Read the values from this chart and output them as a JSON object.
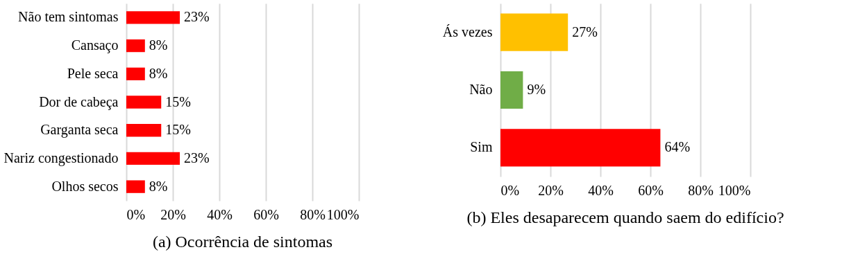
{
  "chart_data": [
    {
      "type": "bar",
      "orientation": "horizontal",
      "title": "(a) Ocorrência de sintomas",
      "categories": [
        "Não tem sintomas",
        "Cansaço",
        "Pele seca",
        "Dor de cabeça",
        "Garganta seca",
        "Nariz congestionado",
        "Olhos secos"
      ],
      "values": [
        23,
        8,
        8,
        15,
        15,
        23,
        8
      ],
      "colors": [
        "#ff0000",
        "#ff0000",
        "#ff0000",
        "#ff0000",
        "#ff0000",
        "#ff0000",
        "#ff0000"
      ],
      "value_labels": [
        "23%",
        "8%",
        "8%",
        "15%",
        "15%",
        "23%",
        "8%"
      ],
      "xlim": [
        0,
        100
      ],
      "xticks": [
        {
          "value": 0,
          "label": "0%"
        },
        {
          "value": 20,
          "label": "20%"
        },
        {
          "value": 40,
          "label": "40%"
        },
        {
          "value": 60,
          "label": "60%"
        },
        {
          "value": 80,
          "label": "80%"
        },
        {
          "value": 100,
          "label": "100%"
        }
      ],
      "grid": "x"
    },
    {
      "type": "bar",
      "orientation": "horizontal",
      "title": "(b) Eles desaparecem quando saem do edifício?",
      "categories": [
        "Ás vezes",
        "Não",
        "Sim"
      ],
      "values": [
        27,
        9,
        64
      ],
      "colors": [
        "#ffc000",
        "#70ad47",
        "#ff0000"
      ],
      "value_labels": [
        "27%",
        "9%",
        "64%"
      ],
      "xlim": [
        0,
        100
      ],
      "xticks": [
        {
          "value": 0,
          "label": "0%"
        },
        {
          "value": 20,
          "label": "20%"
        },
        {
          "value": 40,
          "label": "40%"
        },
        {
          "value": 60,
          "label": "60%"
        },
        {
          "value": 80,
          "label": "80%"
        },
        {
          "value": 100,
          "label": "100%"
        }
      ],
      "grid": "x"
    }
  ]
}
